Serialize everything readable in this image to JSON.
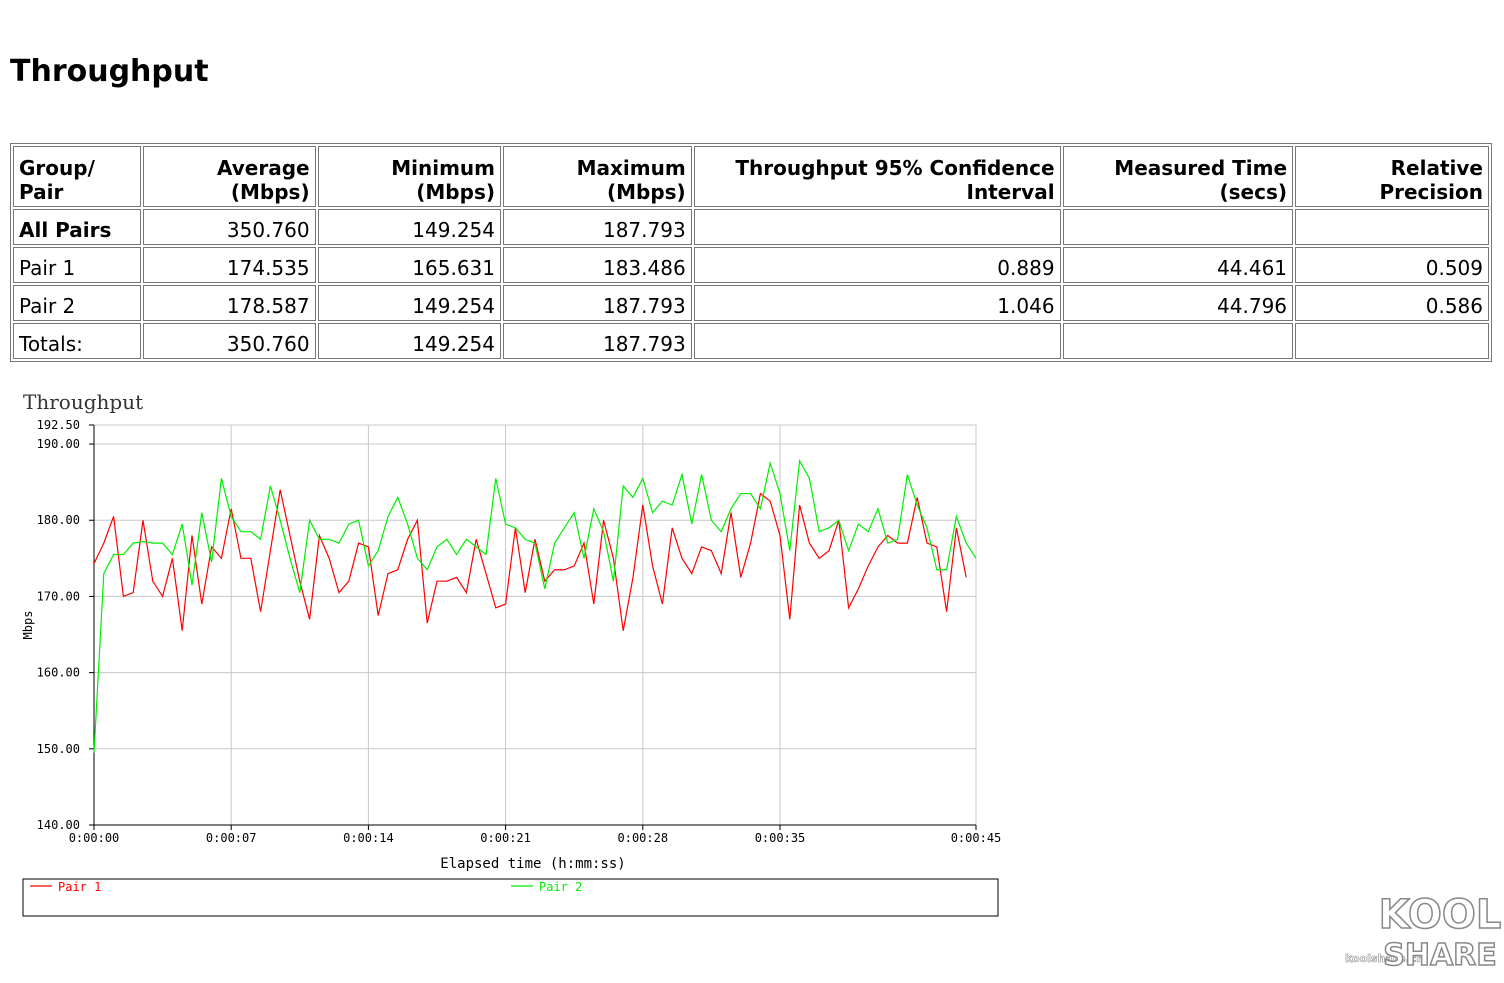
{
  "heading": {
    "title": "Throughput"
  },
  "table": {
    "header": [
      "Group/ Pair",
      "Average (Mbps)",
      "Minimum (Mbps)",
      "Maximum (Mbps)",
      "Throughput 95% Confidence Interval",
      "Measured Time (secs)",
      "Relative Precision"
    ],
    "rows": [
      [
        "All Pairs",
        "350.760",
        "149.254",
        "187.793",
        null,
        null,
        null
      ],
      [
        "Pair 1",
        "174.535",
        "165.631",
        "183.486",
        "0.889",
        "44.461",
        "0.509"
      ],
      [
        "Pair 2",
        "178.587",
        "149.254",
        "187.793",
        "1.046",
        "44.796",
        "0.586"
      ],
      [
        "Totals:",
        "350.760",
        "149.254",
        "187.793",
        null,
        null,
        null
      ]
    ]
  },
  "chart_data": {
    "type": "line",
    "title": "Throughput",
    "x_label": "Elapsed time (h:mm:ss)",
    "y_label": "Mbps",
    "xlim": [
      0,
      45
    ],
    "xticks": [
      {
        "value": 0,
        "label": "0:00:00"
      },
      {
        "value": 7,
        "label": "0:00:07"
      },
      {
        "value": 14,
        "label": "0:00:14"
      },
      {
        "value": 21,
        "label": "0:00:21"
      },
      {
        "value": 28,
        "label": "0:00:28"
      },
      {
        "value": 35,
        "label": "0:00:35"
      },
      {
        "value": 45,
        "label": "0:00:45"
      }
    ],
    "ylim": [
      140,
      192.5
    ],
    "yticks": [
      {
        "value": 140,
        "label": "140.00"
      },
      {
        "value": 150,
        "label": "150.00"
      },
      {
        "value": 160,
        "label": "160.00"
      },
      {
        "value": 170,
        "label": "170.00"
      },
      {
        "value": 180,
        "label": "180.00"
      },
      {
        "value": 190,
        "label": "190.00"
      },
      {
        "value": 192.5,
        "label": "192.50"
      }
    ],
    "grid": true,
    "x": [
      0,
      0.5,
      1,
      1.5,
      2,
      2.5,
      3,
      3.5,
      4,
      4.5,
      5,
      5.5,
      6,
      6.5,
      7,
      7.5,
      8,
      8.5,
      9,
      9.5,
      10,
      10.5,
      11,
      11.5,
      12,
      12.5,
      13,
      13.5,
      14,
      14.5,
      15,
      15.5,
      16,
      16.5,
      17,
      17.5,
      18,
      18.5,
      19,
      19.5,
      20,
      20.5,
      21,
      21.5,
      22,
      22.5,
      23,
      23.5,
      24,
      24.5,
      25,
      25.5,
      26,
      26.5,
      27,
      27.5,
      28,
      28.5,
      29,
      29.5,
      30,
      30.5,
      31,
      31.5,
      32,
      32.5,
      33,
      33.5,
      34,
      34.5,
      35,
      35.5,
      36,
      36.5,
      37,
      37.5,
      38,
      38.5,
      39,
      39.5,
      40,
      40.5,
      41,
      41.5,
      42,
      42.5,
      43,
      43.5,
      44,
      44.5,
      45
    ],
    "series": [
      {
        "name": "Pair 1",
        "color": "#ff0000",
        "values": [
          174.3,
          177,
          180.5,
          170,
          170.5,
          180,
          172,
          170,
          175,
          165.5,
          178,
          169,
          176.5,
          175,
          181.5,
          175,
          175,
          168,
          176,
          184,
          178,
          172,
          167,
          178,
          175,
          170.5,
          172,
          177,
          176.5,
          167.5,
          173,
          173.5,
          177.5,
          180,
          166.5,
          172,
          172,
          172.5,
          170.5,
          177.5,
          173,
          168.5,
          169,
          179,
          170.5,
          177.5,
          172,
          173.5,
          173.5,
          174,
          177,
          169,
          180,
          175,
          165.5,
          172.5,
          182,
          174,
          169,
          179,
          175,
          173,
          176.5,
          176,
          173,
          181,
          172.5,
          177,
          183.5,
          182.5,
          178,
          167,
          182,
          177,
          175,
          176,
          180,
          168.5,
          171,
          174,
          176.5,
          178,
          177,
          177,
          183,
          177,
          176.5,
          168,
          179,
          172.5,
          null
        ]
      },
      {
        "name": "Pair 2",
        "color": "#00ee00",
        "values": [
          149.5,
          173,
          175.5,
          175.5,
          177,
          177.2,
          177,
          177,
          175.5,
          179.5,
          171.5,
          181,
          174.5,
          185.5,
          180.5,
          178.5,
          178.5,
          177.5,
          184.5,
          180,
          175,
          170.5,
          180,
          177.5,
          177.5,
          177,
          179.5,
          180,
          174,
          176,
          180.5,
          183,
          179.5,
          175,
          173.5,
          176.5,
          177.5,
          175.5,
          177.5,
          176.5,
          175.5,
          185.5,
          179.5,
          179,
          177.5,
          177,
          171,
          177,
          179,
          181,
          175,
          181.5,
          178.5,
          172,
          184.5,
          183,
          185.5,
          181,
          182.5,
          182,
          186,
          179.5,
          186,
          180,
          178.5,
          181.5,
          183.5,
          183.5,
          181.5,
          187.5,
          183.5,
          176,
          187.8,
          185.5,
          178.5,
          179,
          180,
          176,
          179.5,
          178.5,
          181.5,
          177,
          177.5,
          186,
          182,
          179,
          173.5,
          173.5,
          180.5,
          177,
          175
        ]
      }
    ]
  },
  "watermark": {
    "site": "koolshare.cn",
    "logo_top": "KOOL",
    "logo_bottom": "SHARE"
  }
}
